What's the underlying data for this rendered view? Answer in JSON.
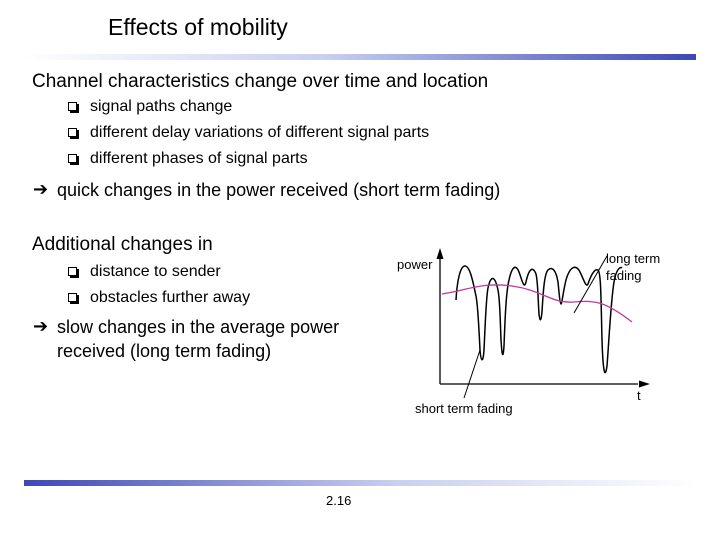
{
  "slide": {
    "title": "Effects of mobility",
    "heading1": "Channel characteristics change over time and location",
    "bullets1": [
      "signal paths change",
      "different delay variations of different signal parts",
      "different phases of signal parts"
    ],
    "arrow_symbol": "➔",
    "conclusion1": "quick changes in the power received (short term fading)",
    "heading2": "Additional changes in",
    "bullets2": [
      "distance to sender",
      "obstacles further away"
    ],
    "conclusion2_line1": "slow changes in the average power",
    "conclusion2_line2": "received (long term fading)",
    "page_number": "2.16"
  },
  "diagram": {
    "y_label": "power",
    "x_label": "t",
    "long_term_label_line1": "long term",
    "long_term_label_line2": "fading",
    "short_term_label": "short term fading",
    "colors": {
      "short_term_curve": "#000000",
      "long_term_curve": "#c0399a",
      "axis": "#000000"
    }
  }
}
